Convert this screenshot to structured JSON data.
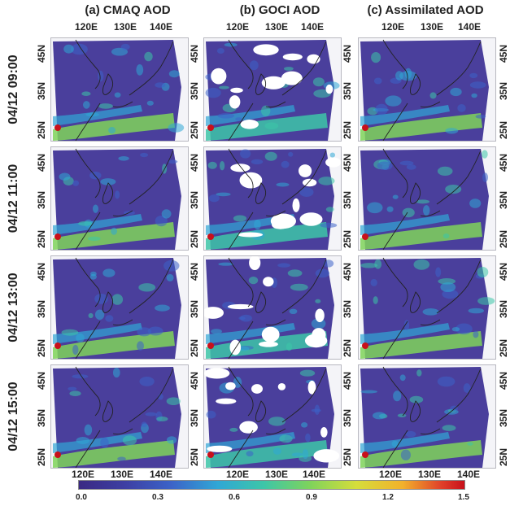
{
  "columns": [
    {
      "title": "(a) CMAQ AOD",
      "kind": "cmaq"
    },
    {
      "title": "(b) GOCI AOD",
      "kind": "goci"
    },
    {
      "title": "(c) Assimilated AOD",
      "kind": "assim"
    }
  ],
  "rows": [
    "04/12 09:00",
    "04/12 11:00",
    "04/12 13:00",
    "04/12 15:00"
  ],
  "lon_labels": [
    "120E",
    "130E",
    "140E"
  ],
  "lat_labels": [
    "45N",
    "35N",
    "25N"
  ],
  "colorbar": {
    "ticks": [
      "0.0",
      "0.3",
      "0.6",
      "0.9",
      "1.2",
      "1.5"
    ],
    "range": [
      0.0,
      1.5
    ],
    "colors": [
      "#3b2a83",
      "#3d3fa3",
      "#3c63c8",
      "#30a7d6",
      "#3dc6a8",
      "#7fd35b",
      "#d6dd3b",
      "#f2b12b",
      "#e0402a",
      "#c8101a"
    ]
  },
  "colors": {
    "background_field": "#4a3f9c",
    "land_outline": "#222222",
    "missing": "#ffffff"
  }
}
